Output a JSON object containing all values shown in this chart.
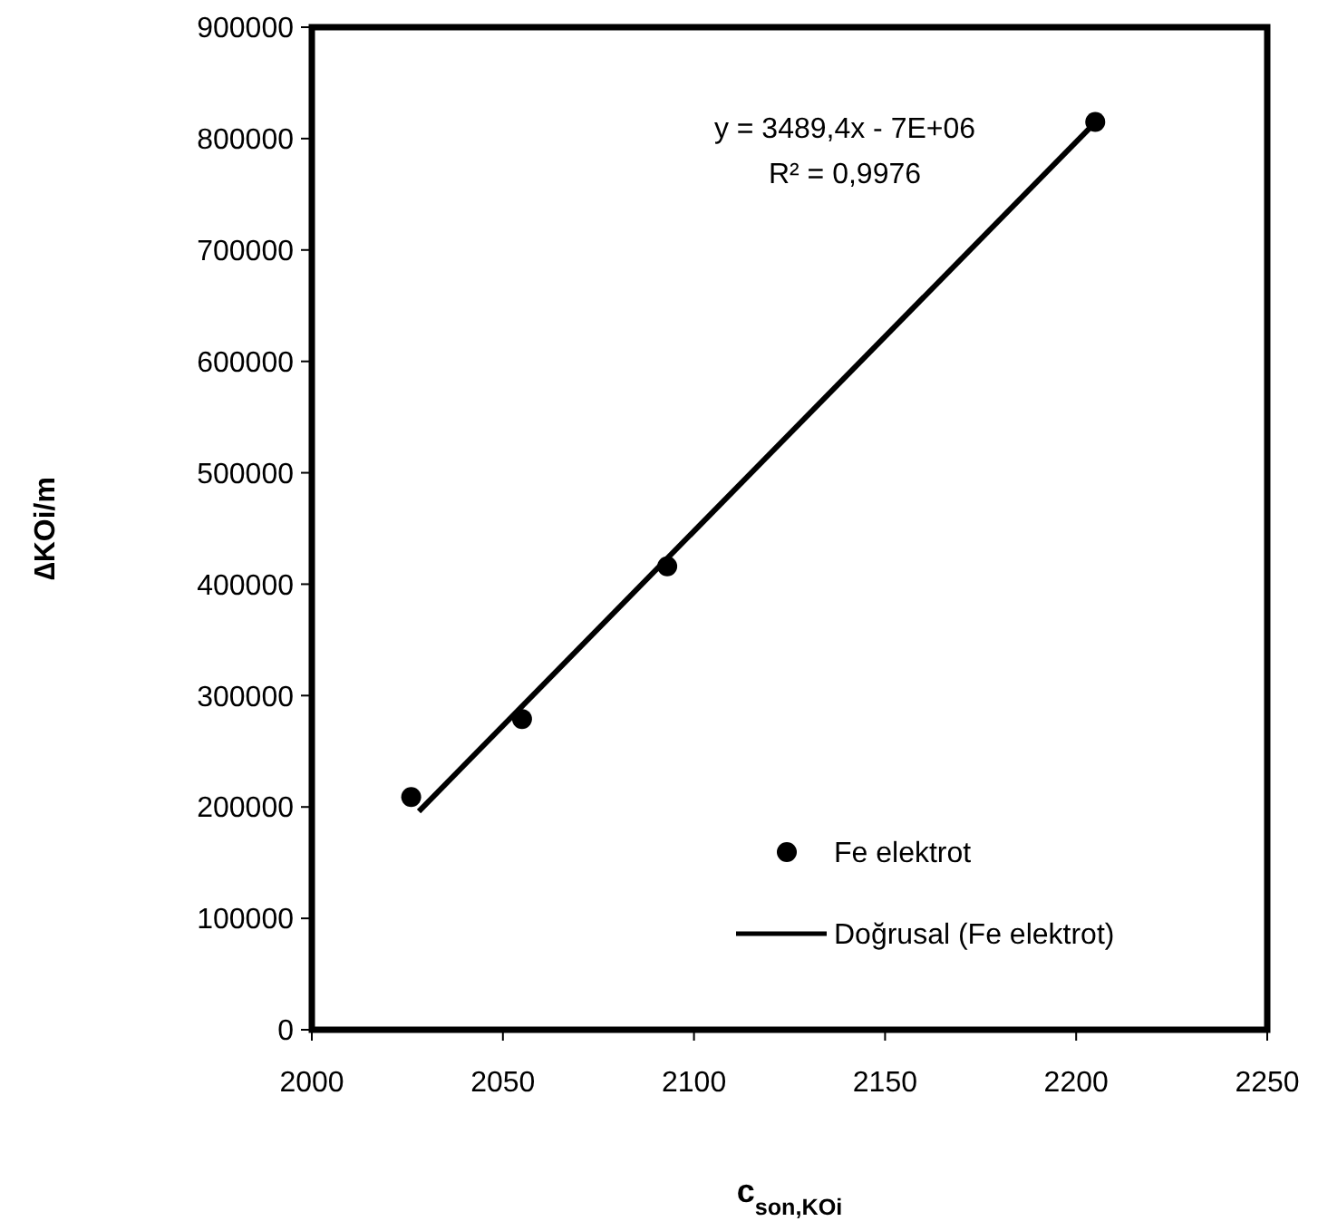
{
  "chart_data": {
    "type": "scatter",
    "xlabel": "c$_{son,KOi}$",
    "ylabel": "∆KOi/m",
    "series": [
      {
        "name": "Fe elektrot",
        "color": "#000000",
        "x": [
          2026,
          2055,
          2093,
          2205
        ],
        "values": [
          209000,
          279000,
          416000,
          815000
        ],
        "marker": "circle"
      },
      {
        "name": "Doğrusal (Fe elektrot)",
        "type": "line",
        "color": "#000000",
        "x": [
          2028,
          2204
        ],
        "values": [
          196000,
          811000
        ],
        "marker": "none",
        "line_style": "solid"
      }
    ],
    "annotations": [
      "y = 3489,4x - 7E+06",
      "R² = 0,9976"
    ],
    "xlim": [
      2000,
      2250
    ],
    "xticks": [
      2000,
      2050,
      2100,
      2150,
      2200,
      2250
    ],
    "ylim": [
      0,
      900000
    ],
    "yticks": [
      0,
      100000,
      200000,
      300000,
      400000,
      500000,
      600000,
      700000,
      800000,
      900000
    ],
    "grid": false,
    "legend": "bottom right"
  }
}
